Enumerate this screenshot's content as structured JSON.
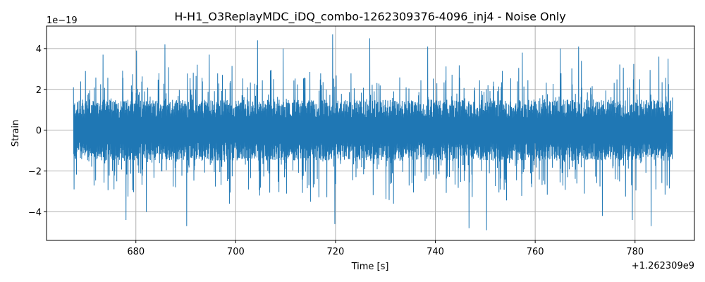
{
  "chart_data": {
    "type": "line",
    "title": "H-H1_O3ReplayMDC_iDQ_combo-1262309376-4096_inj4 - Noise Only",
    "xlabel": "Time [s]",
    "ylabel": "Strain",
    "x_offset_label": "+1.262309e9",
    "y_scale_label": "1e−19",
    "xlim": [
      662.1,
      791.9
    ],
    "ylim": [
      -5.4,
      5.1
    ],
    "x_ticks": [
      680,
      700,
      720,
      740,
      760,
      780
    ],
    "x_tick_labels": [
      "680",
      "700",
      "720",
      "740",
      "760",
      "780"
    ],
    "y_ticks": [
      -4,
      -2,
      0,
      2,
      4
    ],
    "y_tick_labels": [
      "−4",
      "−2",
      "0",
      "2",
      "4"
    ],
    "grid": true,
    "line_color": "#1f77b4",
    "series": [
      {
        "x_range": [
          667.5,
          787.5
        ],
        "typical_amplitude": [
          -1.5,
          1.5
        ],
        "envelope_peaks": [
          {
            "x": 667.5,
            "y": 2.1
          },
          {
            "x": 667.6,
            "y": -2.9
          },
          {
            "x": 669.9,
            "y": 2.9
          },
          {
            "x": 673.4,
            "y": 3.7
          },
          {
            "x": 678.0,
            "y": -4.4
          },
          {
            "x": 680.1,
            "y": 3.9
          },
          {
            "x": 682.1,
            "y": -4.0
          },
          {
            "x": 685.8,
            "y": 4.2
          },
          {
            "x": 690.2,
            "y": -4.7
          },
          {
            "x": 694.7,
            "y": 3.7
          },
          {
            "x": 698.7,
            "y": -3.6
          },
          {
            "x": 704.4,
            "y": 4.4
          },
          {
            "x": 709.5,
            "y": 4.0
          },
          {
            "x": 715.0,
            "y": -3.5
          },
          {
            "x": 719.4,
            "y": 4.7
          },
          {
            "x": 719.9,
            "y": -4.6
          },
          {
            "x": 726.9,
            "y": 4.5
          },
          {
            "x": 731.6,
            "y": -3.6
          },
          {
            "x": 738.5,
            "y": 4.1
          },
          {
            "x": 746.7,
            "y": -4.8
          },
          {
            "x": 750.3,
            "y": -4.9
          },
          {
            "x": 757.4,
            "y": 3.8
          },
          {
            "x": 765.0,
            "y": 4.0
          },
          {
            "x": 768.7,
            "y": 4.1
          },
          {
            "x": 773.5,
            "y": -4.2
          },
          {
            "x": 779.5,
            "y": -4.4
          },
          {
            "x": 783.2,
            "y": -4.7
          },
          {
            "x": 784.8,
            "y": 3.6
          },
          {
            "x": 786.6,
            "y": 3.5
          },
          {
            "x": 787.5,
            "y": 1.6
          }
        ]
      }
    ]
  }
}
